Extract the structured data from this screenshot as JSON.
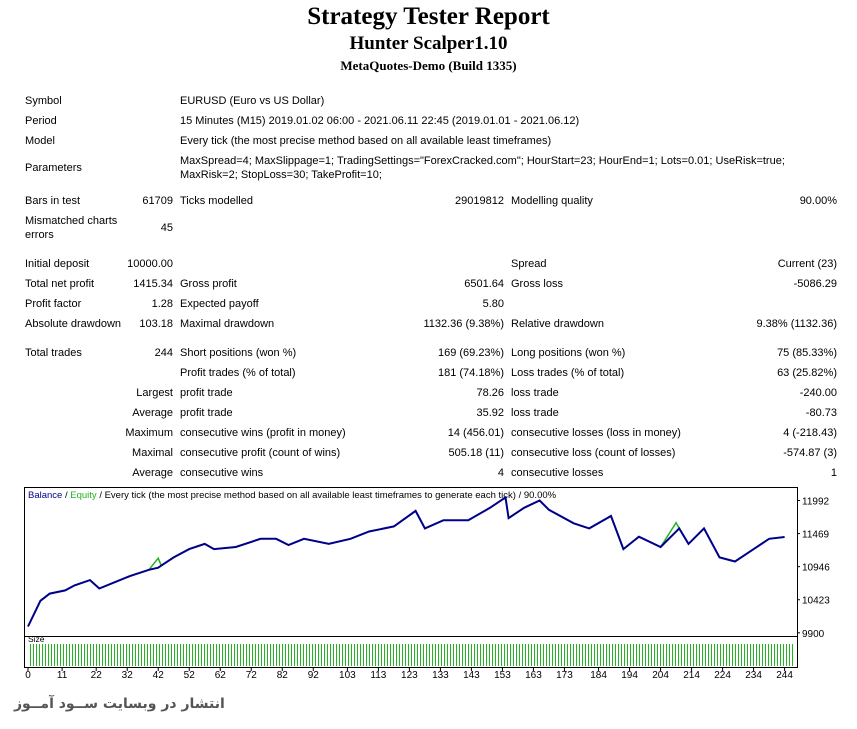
{
  "header": {
    "title": "Strategy Tester Report",
    "subtitle": "Hunter Scalper1.10",
    "server": "MetaQuotes-Demo (Build 1335)"
  },
  "info": [
    [
      "Symbol",
      "EURUSD (Euro vs US Dollar)"
    ],
    [
      "Period",
      "15 Minutes (M15) 2019.01.02 06:00 - 2021.06.11 22:45 (2019.01.01 - 2021.06.12)"
    ],
    [
      "Model",
      "Every tick (the most precise method based on all available least timeframes)"
    ],
    [
      "Parameters",
      "MaxSpread=4; MaxSlippage=1; TradingSettings=\"ForexCracked.com\"; HourStart=23; HourEnd=1; Lots=0.01; UseRisk=true; MaxRisk=2; StopLoss=30; TakeProfit=10;"
    ]
  ],
  "stats": [
    [
      "Bars in test",
      "61709",
      "Ticks modelled",
      "29019812",
      "Modelling quality",
      "90.00%"
    ],
    [
      "Mismatched charts errors",
      "45",
      null,
      null,
      null,
      null
    ],
    [
      "Initial deposit",
      "10000.00",
      null,
      null,
      "Spread",
      "Current (23)"
    ],
    [
      "Total net profit",
      "1415.34",
      "Gross profit",
      "6501.64",
      "Gross loss",
      "-5086.29"
    ],
    [
      "Profit factor",
      "1.28",
      "Expected payoff",
      "5.80",
      null,
      null
    ],
    [
      "Absolute drawdown",
      "103.18",
      "Maximal drawdown",
      "1132.36 (9.38%)",
      "Relative drawdown",
      "9.38% (1132.36)"
    ],
    [
      "Total trades",
      "244",
      "Short positions (won %)",
      "169 (69.23%)",
      "Long positions (won %)",
      "75 (85.33%)"
    ],
    [
      null,
      null,
      "Profit trades (% of total)",
      "181 (74.18%)",
      "Loss trades (% of total)",
      "63 (25.82%)"
    ],
    [
      null,
      "Largest",
      "profit trade",
      "78.26",
      "loss trade",
      "-240.00"
    ],
    [
      null,
      "Average",
      "profit trade",
      "35.92",
      "loss trade",
      "-80.73"
    ],
    [
      null,
      "Maximum",
      "consecutive wins (profit in money)",
      "14 (456.01)",
      "consecutive losses (loss in money)",
      "4 (-218.43)"
    ],
    [
      null,
      "Maximal",
      "consecutive profit (count of wins)",
      "505.18 (11)",
      "consecutive loss (count of losses)",
      "-574.87 (3)"
    ],
    [
      null,
      "Average",
      "consecutive wins",
      "4",
      "consecutive losses",
      "1"
    ]
  ],
  "chart_data": {
    "type": "line",
    "legend_separator": "/",
    "caption": "Every tick (the most precise method based on all available least timeframes to generate each tick)",
    "quality": "90.00%",
    "size_label": "Size",
    "x": [
      0,
      4,
      7,
      12,
      15,
      20,
      23,
      28,
      33,
      39,
      42,
      43,
      47,
      52,
      57,
      60,
      67,
      75,
      80,
      84,
      89,
      97,
      104,
      110,
      118,
      125,
      128,
      134,
      142,
      149,
      154,
      155,
      160,
      165,
      168,
      176,
      181,
      188,
      192,
      197,
      204,
      209,
      210,
      213,
      218,
      223,
      228,
      233,
      239,
      244
    ],
    "series": [
      {
        "name": "Equity",
        "color": "#22b322",
        "values": [
          10000,
          10406,
          10520,
          10570,
          10650,
          10733,
          10600,
          10700,
          10800,
          10897,
          11080,
          10962,
          11093,
          11224,
          11305,
          11224,
          11256,
          11387,
          11387,
          11289,
          11387,
          11305,
          11387,
          11501,
          11583,
          11828,
          11550,
          11681,
          11681,
          11877,
          12040,
          11714,
          11877,
          11992,
          11845,
          11632,
          11550,
          11747,
          11224,
          11420,
          11256,
          11640,
          11550,
          11305,
          11550,
          11093,
          11028,
          11191,
          11387,
          11415
        ]
      },
      {
        "name": "Balance",
        "color": "#00008b",
        "values": [
          10000,
          10406,
          10520,
          10570,
          10650,
          10733,
          10600,
          10700,
          10800,
          10897,
          10930,
          10962,
          11093,
          11224,
          11305,
          11224,
          11256,
          11387,
          11387,
          11289,
          11387,
          11305,
          11387,
          11501,
          11583,
          11828,
          11550,
          11681,
          11681,
          11877,
          12040,
          11714,
          11877,
          11992,
          11845,
          11632,
          11550,
          11747,
          11224,
          11420,
          11256,
          11500,
          11550,
          11305,
          11550,
          11093,
          11028,
          11191,
          11387,
          11415
        ]
      }
    ],
    "xlim": [
      0,
      248
    ],
    "ylim": [
      9850,
      12205
    ],
    "xticks": [
      0,
      11,
      22,
      32,
      42,
      52,
      62,
      72,
      82,
      92,
      103,
      113,
      123,
      133,
      143,
      153,
      163,
      173,
      184,
      194,
      204,
      214,
      224,
      234,
      244
    ],
    "yticks": [
      9900,
      10423,
      10946,
      11469,
      11992
    ]
  },
  "watermark": "انتشار در وبسایت ســود آمــوز"
}
